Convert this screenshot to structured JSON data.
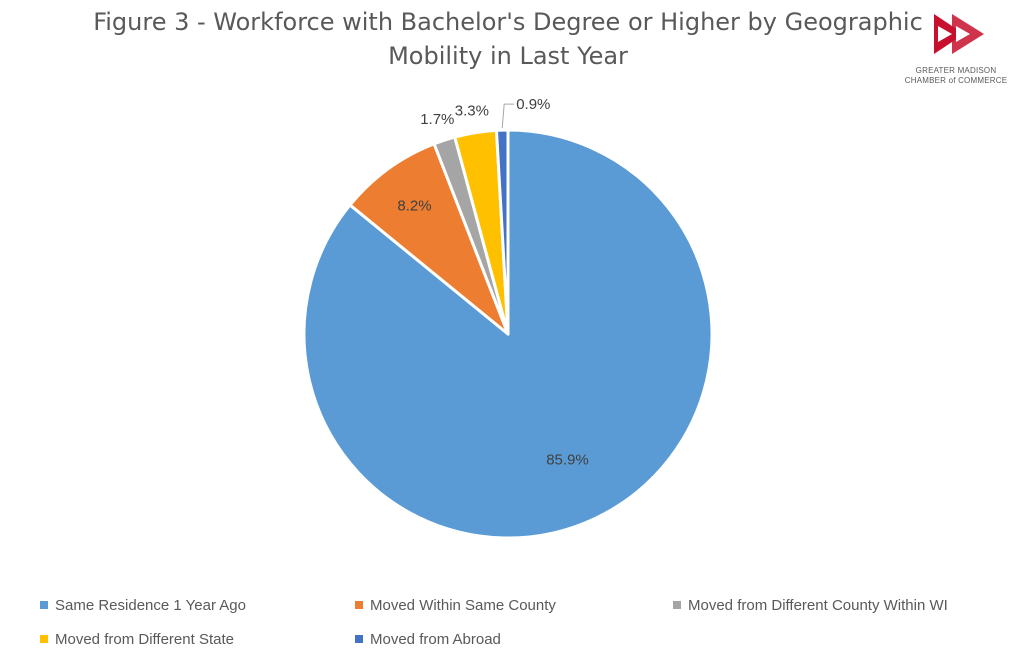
{
  "logo": {
    "line1": "GREATER MADISON",
    "line2": "CHAMBER of COMMERCE",
    "color": "#C8102E"
  },
  "chart_data": {
    "type": "pie",
    "title": "Figure 3 - Workforce with Bachelor's Degree or Higher by Geographic Mobility in Last Year",
    "title_lines": [
      "Figure 3 - Workforce with Bachelor's Degree or Higher by Geographic",
      "Mobility in Last Year"
    ],
    "categories": [
      "Same Residence 1 Year Ago",
      "Moved Within Same County",
      "Moved from Different County Within WI",
      "Moved from Different State",
      "Moved from Abroad"
    ],
    "values": [
      85.9,
      8.2,
      1.7,
      3.3,
      0.9
    ],
    "labels": [
      "85.9%",
      "8.2%",
      "1.7%",
      "3.3%",
      "0.9%"
    ],
    "colors": [
      "#5B9BD5",
      "#ED7D31",
      "#A5A5A5",
      "#FFC000",
      "#4472C4"
    ],
    "legend_position": "bottom"
  }
}
